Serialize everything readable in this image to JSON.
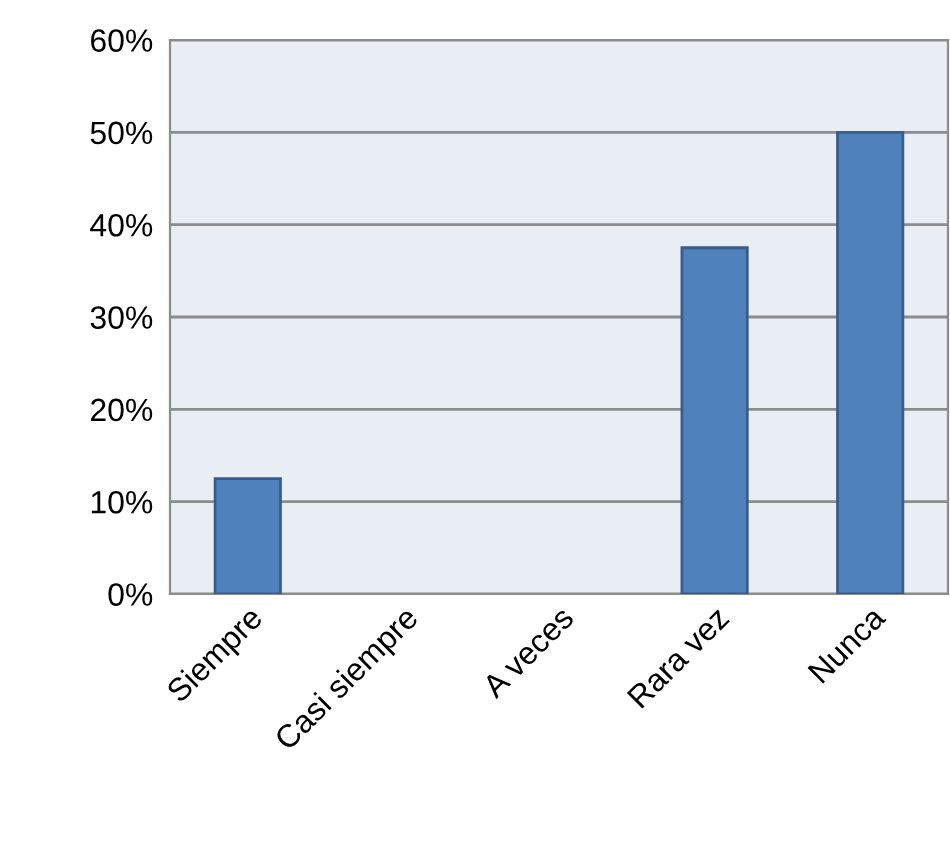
{
  "chart_data": {
    "type": "bar",
    "categories": [
      "Siempre",
      "Casi siempre",
      "A veces",
      "Rara vez",
      "Nunca"
    ],
    "values": [
      12.5,
      0,
      0,
      37.5,
      50
    ],
    "color": "#4f81bd",
    "ylim": [
      0,
      60
    ],
    "yticks": [
      {
        "value": 0,
        "label": "0%"
      },
      {
        "value": 10,
        "label": "10%"
      },
      {
        "value": 20,
        "label": "20%"
      },
      {
        "value": 30,
        "label": "30%"
      },
      {
        "value": 40,
        "label": "40%"
      },
      {
        "value": 50,
        "label": "50%"
      },
      {
        "value": 60,
        "label": "60%"
      }
    ],
    "grid": "y",
    "legend": false
  }
}
